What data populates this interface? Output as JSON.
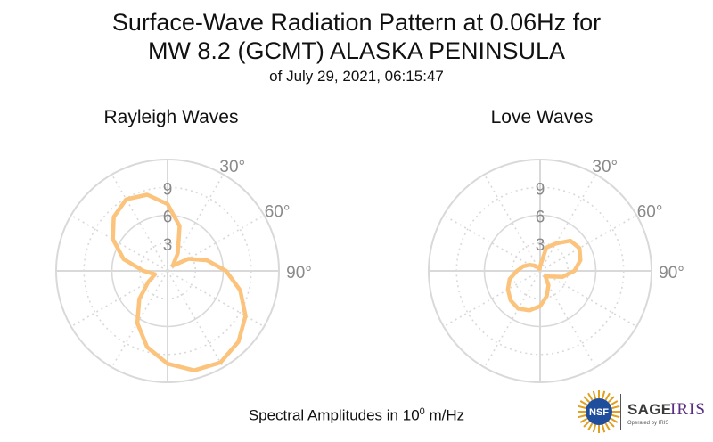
{
  "header": {
    "title_line1": "Surface-Wave Radiation Pattern at 0.06Hz for",
    "title_line2": "MW 8.2 (GCMT) ALASKA PENINSULA",
    "subtitle": "of July 29, 2021, 06:15:47"
  },
  "footer": {
    "label_prefix": "Spectral Amplitudes in 10",
    "label_exp": "0",
    "label_suffix": " m/Hz"
  },
  "logos": {
    "nsf_text": "NSF",
    "sage_text": "SAGE",
    "iris_text": "IRIS",
    "operated_text": "Operated by IRIS",
    "nsf_color": "#1f4e9c",
    "iris_color": "#5a2d82"
  },
  "chart_data": [
    {
      "type": "polar-line",
      "title": "Rayleigh Waves",
      "r_ticks": [
        3,
        6,
        9
      ],
      "rlim": [
        0,
        12
      ],
      "angle_ticks": [
        30,
        60,
        90
      ],
      "angle_tick_labels": [
        "30°",
        "60°",
        "90°"
      ],
      "angle_zero": "north",
      "angle_direction": "clockwise",
      "line_color": "#fbc37b",
      "grid_color": "#d9d9d9",
      "series": [
        {
          "theta_deg": [
            0,
            15,
            30,
            45,
            60,
            75,
            90,
            105,
            120,
            135,
            150,
            165,
            180,
            195,
            210,
            225,
            240,
            255,
            270,
            285,
            300,
            315,
            330,
            345
          ],
          "r": [
            7.2,
            5.0,
            2.2,
            0.8,
            2.6,
            4.4,
            6.3,
            8.1,
            9.7,
            10.8,
            11.4,
            11.1,
            10.0,
            8.5,
            6.5,
            4.3,
            2.4,
            1.4,
            2.6,
            4.9,
            6.8,
            8.2,
            8.9,
            8.5
          ]
        }
      ]
    },
    {
      "type": "polar-line",
      "title": "Love Waves",
      "r_ticks": [
        3,
        6,
        9
      ],
      "rlim": [
        0,
        12
      ],
      "angle_ticks": [
        30,
        60,
        90
      ],
      "angle_tick_labels": [
        "30°",
        "60°",
        "90°"
      ],
      "angle_zero": "north",
      "angle_direction": "clockwise",
      "line_color": "#fbc37b",
      "grid_color": "#d9d9d9",
      "series": [
        {
          "theta_deg": [
            0,
            15,
            30,
            45,
            60,
            75,
            90,
            105,
            120,
            135,
            150,
            165,
            180,
            195,
            210,
            225,
            240,
            255,
            270,
            285,
            300,
            315,
            330,
            345
          ],
          "r": [
            0.5,
            2.6,
            3.4,
            4.6,
            4.9,
            4.5,
            3.7,
            2.5,
            1.2,
            0.8,
            1.8,
            2.8,
            3.8,
            4.4,
            4.7,
            4.5,
            4.0,
            3.4,
            2.5,
            1.9,
            1.3,
            0.8,
            0.4,
            0.2
          ]
        }
      ]
    }
  ]
}
